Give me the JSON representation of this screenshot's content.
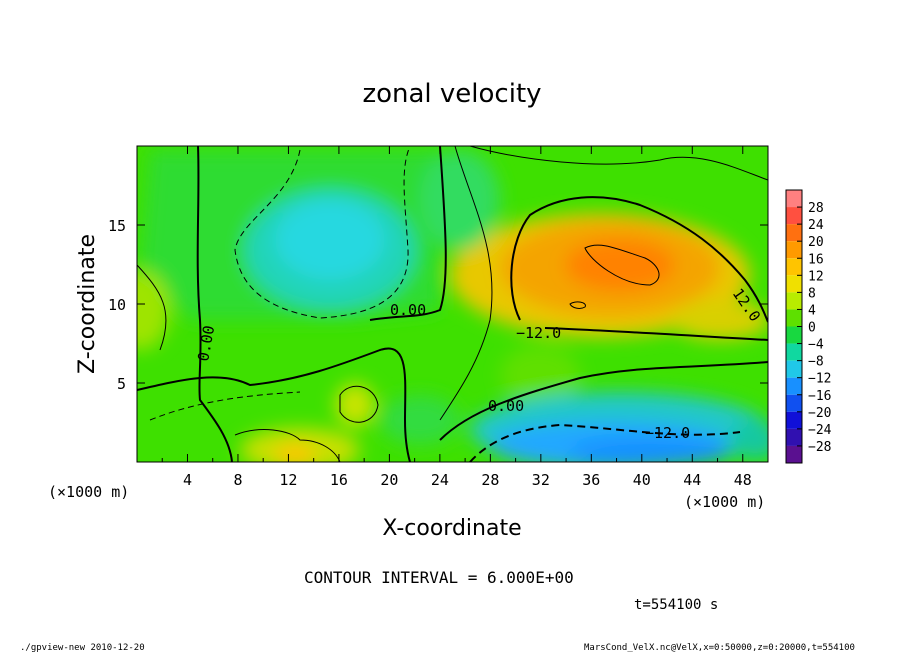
{
  "chart_data": {
    "type": "heatmap",
    "title": "zonal velocity",
    "xlabel": "X-coordinate",
    "ylabel": "Z-coordinate",
    "x_unit_left": "(×1000 m)",
    "x_unit_right": "(×1000 m)",
    "xlim": [
      0,
      50
    ],
    "ylim": [
      0,
      20
    ],
    "x_ticks": [
      4,
      8,
      12,
      16,
      20,
      24,
      28,
      32,
      36,
      40,
      44,
      48
    ],
    "y_ticks": [
      5,
      10,
      15
    ],
    "colorbar": {
      "labels": [
        "28",
        "24",
        "20",
        "16",
        "12",
        "8",
        "4",
        "0",
        "−4",
        "−8",
        "−12",
        "−16",
        "−20",
        "−24",
        "−28"
      ],
      "levels": [
        30,
        26,
        22,
        18,
        14,
        10,
        6,
        2,
        -2,
        -6,
        -10,
        -14,
        -18,
        -22,
        -26,
        -30
      ],
      "colors": [
        "#ff8080",
        "#ff5040",
        "#ff7010",
        "#ff9a00",
        "#ffc400",
        "#f0e000",
        "#b8ec00",
        "#5ee000",
        "#18d840",
        "#10d8a0",
        "#20c8e8",
        "#1890ff",
        "#1050f0",
        "#1010d8",
        "#3010b0",
        "#5a1090"
      ]
    },
    "contour_labels": [
      {
        "text": "0.00",
        "x": 21.5,
        "z": 9.8
      },
      {
        "text": "0.00",
        "x": 5.2,
        "z": 8.1
      },
      {
        "text": "−12.0",
        "x": 32.2,
        "z": 8.4
      },
      {
        "text": "12.0",
        "x": 47.5,
        "z": 10.2
      },
      {
        "text": "0.00",
        "x": 29.5,
        "z": 3.8
      },
      {
        "text": "−12.0",
        "x": 41.5,
        "z": 1.8
      }
    ],
    "contour_interval": "CONTOUR INTERVAL = 6.000E+00",
    "time": "t=554100 s",
    "footer_left": "./gpview-new  2010-12-20",
    "footer_right": "MarsCond_VelX.nc@VelX,x=0:50000,z=0:20000,t=554100"
  }
}
